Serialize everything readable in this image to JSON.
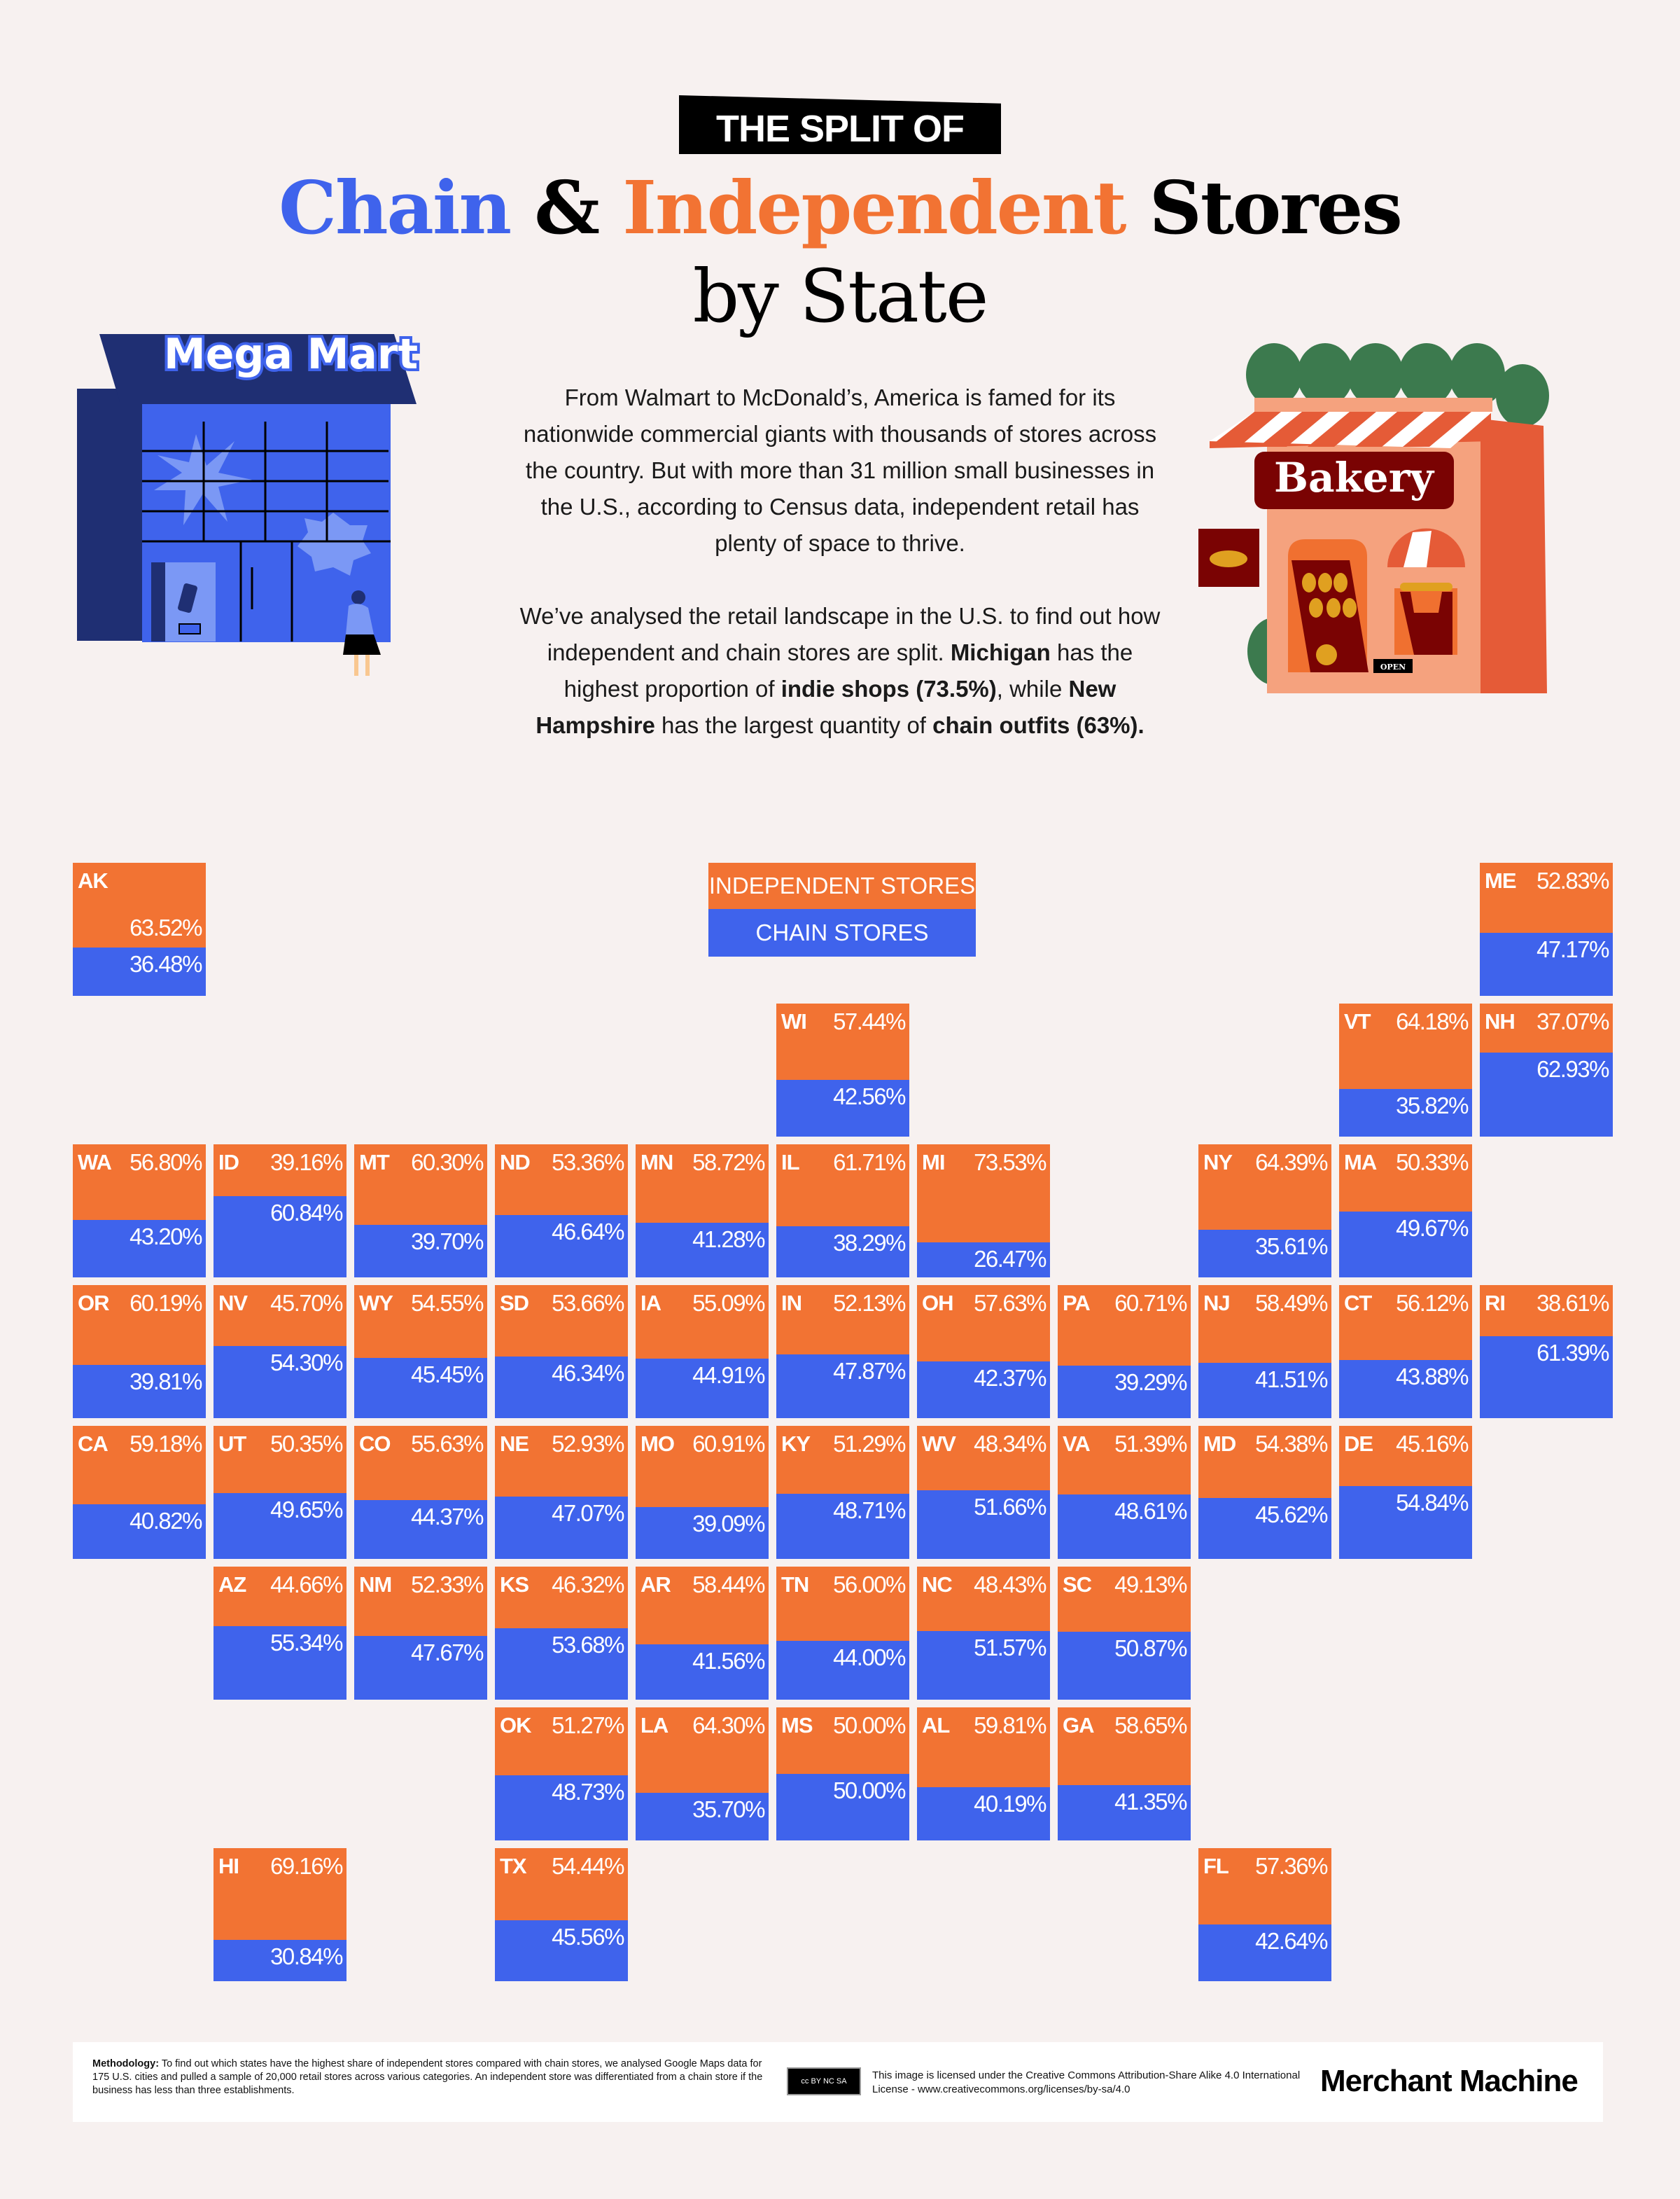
{
  "header": {
    "kicker": "THE SPLIT OF",
    "title_chain": "Chain",
    "title_amp": " & ",
    "title_independent": "Independent",
    "title_stores": " Stores",
    "title_line2": "by State"
  },
  "intro": {
    "p1": "From Walmart to McDonald’s, America is famed for its nationwide commercial giants with thousands of stores across the country. But with more than 31 million small businesses in the U.S., according to Census data, independent retail has plenty of space to thrive.",
    "p2_a": "We’ve analysed the retail landscape in the U.S. to find out how independent and chain stores are split. ",
    "p2_b": "Michigan",
    "p2_c": " has the highest proportion of ",
    "p2_d": "indie shops (73.5%)",
    "p2_e": ", while ",
    "p2_f": "New Hampshire",
    "p2_g": " has the largest quantity of ",
    "p2_h": "chain outfits (63%)."
  },
  "illustrations": {
    "left_sign": "Mega Mart",
    "right_sign": "Bakery",
    "open_sign": "OPEN"
  },
  "colors": {
    "independent": "#F27333",
    "chain": "#3F63EC",
    "background": "#F7F1F0"
  },
  "chart_data": {
    "type": "tile-map stacked bar",
    "legend": [
      "INDEPENDENT STORES",
      "CHAIN STORES"
    ],
    "legend_placement": "top-center",
    "unit": "%",
    "states": [
      {
        "code": "AK",
        "row": 0,
        "col": 0,
        "independent": 63.52,
        "chain": 36.48
      },
      {
        "code": "ME",
        "row": 0,
        "col": 10,
        "independent": 52.83,
        "chain": 47.17
      },
      {
        "code": "WI",
        "row": 1,
        "col": 5,
        "independent": 57.44,
        "chain": 42.56
      },
      {
        "code": "VT",
        "row": 1,
        "col": 9,
        "independent": 64.18,
        "chain": 35.82
      },
      {
        "code": "NH",
        "row": 1,
        "col": 10,
        "independent": 37.07,
        "chain": 62.93
      },
      {
        "code": "WA",
        "row": 2,
        "col": 0,
        "independent": 56.8,
        "chain": 43.2
      },
      {
        "code": "ID",
        "row": 2,
        "col": 1,
        "independent": 39.16,
        "chain": 60.84
      },
      {
        "code": "MT",
        "row": 2,
        "col": 2,
        "independent": 60.3,
        "chain": 39.7
      },
      {
        "code": "ND",
        "row": 2,
        "col": 3,
        "independent": 53.36,
        "chain": 46.64
      },
      {
        "code": "MN",
        "row": 2,
        "col": 4,
        "independent": 58.72,
        "chain": 41.28
      },
      {
        "code": "IL",
        "row": 2,
        "col": 5,
        "independent": 61.71,
        "chain": 38.29
      },
      {
        "code": "MI",
        "row": 2,
        "col": 6,
        "independent": 73.53,
        "chain": 26.47
      },
      {
        "code": "NY",
        "row": 2,
        "col": 8,
        "independent": 64.39,
        "chain": 35.61
      },
      {
        "code": "MA",
        "row": 2,
        "col": 9,
        "independent": 50.33,
        "chain": 49.67
      },
      {
        "code": "OR",
        "row": 3,
        "col": 0,
        "independent": 60.19,
        "chain": 39.81
      },
      {
        "code": "NV",
        "row": 3,
        "col": 1,
        "independent": 45.7,
        "chain": 54.3
      },
      {
        "code": "WY",
        "row": 3,
        "col": 2,
        "independent": 54.55,
        "chain": 45.45
      },
      {
        "code": "SD",
        "row": 3,
        "col": 3,
        "independent": 53.66,
        "chain": 46.34
      },
      {
        "code": "IA",
        "row": 3,
        "col": 4,
        "independent": 55.09,
        "chain": 44.91
      },
      {
        "code": "IN",
        "row": 3,
        "col": 5,
        "independent": 52.13,
        "chain": 47.87
      },
      {
        "code": "OH",
        "row": 3,
        "col": 6,
        "independent": 57.63,
        "chain": 42.37
      },
      {
        "code": "PA",
        "row": 3,
        "col": 7,
        "independent": 60.71,
        "chain": 39.29
      },
      {
        "code": "NJ",
        "row": 3,
        "col": 8,
        "independent": 58.49,
        "chain": 41.51
      },
      {
        "code": "CT",
        "row": 3,
        "col": 9,
        "independent": 56.12,
        "chain": 43.88
      },
      {
        "code": "RI",
        "row": 3,
        "col": 10,
        "independent": 38.61,
        "chain": 61.39
      },
      {
        "code": "CA",
        "row": 4,
        "col": 0,
        "independent": 59.18,
        "chain": 40.82
      },
      {
        "code": "UT",
        "row": 4,
        "col": 1,
        "independent": 50.35,
        "chain": 49.65
      },
      {
        "code": "CO",
        "row": 4,
        "col": 2,
        "independent": 55.63,
        "chain": 44.37
      },
      {
        "code": "NE",
        "row": 4,
        "col": 3,
        "independent": 52.93,
        "chain": 47.07
      },
      {
        "code": "MO",
        "row": 4,
        "col": 4,
        "independent": 60.91,
        "chain": 39.09
      },
      {
        "code": "KY",
        "row": 4,
        "col": 5,
        "independent": 51.29,
        "chain": 48.71
      },
      {
        "code": "WV",
        "row": 4,
        "col": 6,
        "independent": 48.34,
        "chain": 51.66
      },
      {
        "code": "VA",
        "row": 4,
        "col": 7,
        "independent": 51.39,
        "chain": 48.61
      },
      {
        "code": "MD",
        "row": 4,
        "col": 8,
        "independent": 54.38,
        "chain": 45.62
      },
      {
        "code": "DE",
        "row": 4,
        "col": 9,
        "independent": 45.16,
        "chain": 54.84
      },
      {
        "code": "AZ",
        "row": 5,
        "col": 1,
        "independent": 44.66,
        "chain": 55.34
      },
      {
        "code": "NM",
        "row": 5,
        "col": 2,
        "independent": 52.33,
        "chain": 47.67
      },
      {
        "code": "KS",
        "row": 5,
        "col": 3,
        "independent": 46.32,
        "chain": 53.68
      },
      {
        "code": "AR",
        "row": 5,
        "col": 4,
        "independent": 58.44,
        "chain": 41.56
      },
      {
        "code": "TN",
        "row": 5,
        "col": 5,
        "independent": 56.0,
        "chain": 44.0
      },
      {
        "code": "NC",
        "row": 5,
        "col": 6,
        "independent": 48.43,
        "chain": 51.57
      },
      {
        "code": "SC",
        "row": 5,
        "col": 7,
        "independent": 49.13,
        "chain": 50.87
      },
      {
        "code": "OK",
        "row": 6,
        "col": 3,
        "independent": 51.27,
        "chain": 48.73
      },
      {
        "code": "LA",
        "row": 6,
        "col": 4,
        "independent": 64.3,
        "chain": 35.7
      },
      {
        "code": "MS",
        "row": 6,
        "col": 5,
        "independent": 50.0,
        "chain": 50.0
      },
      {
        "code": "AL",
        "row": 6,
        "col": 6,
        "independent": 59.81,
        "chain": 40.19
      },
      {
        "code": "GA",
        "row": 6,
        "col": 7,
        "independent": 58.65,
        "chain": 41.35
      },
      {
        "code": "HI",
        "row": 7,
        "col": 1,
        "independent": 69.16,
        "chain": 30.84
      },
      {
        "code": "TX",
        "row": 7,
        "col": 3,
        "independent": 54.44,
        "chain": 45.56
      },
      {
        "code": "FL",
        "row": 7,
        "col": 8,
        "independent": 57.36,
        "chain": 42.64
      }
    ]
  },
  "footer": {
    "methodology_label": "Methodology:",
    "methodology_text": " To find out which states have the highest share of independent stores compared with chain stores, we analysed Google Maps data for 175 U.S. cities and pulled a sample of 20,000 retail stores across various categories. An independent store was differentiated from a chain store if the business has less than three establishments.",
    "cc_badge": "cc BY NC SA",
    "license": "This image is licensed under the Creative Commons Attribution-Share Alike 4.0 International License - www.creativecommons.org/licenses/by-sa/4.0",
    "brand": "Merchant Machine"
  }
}
